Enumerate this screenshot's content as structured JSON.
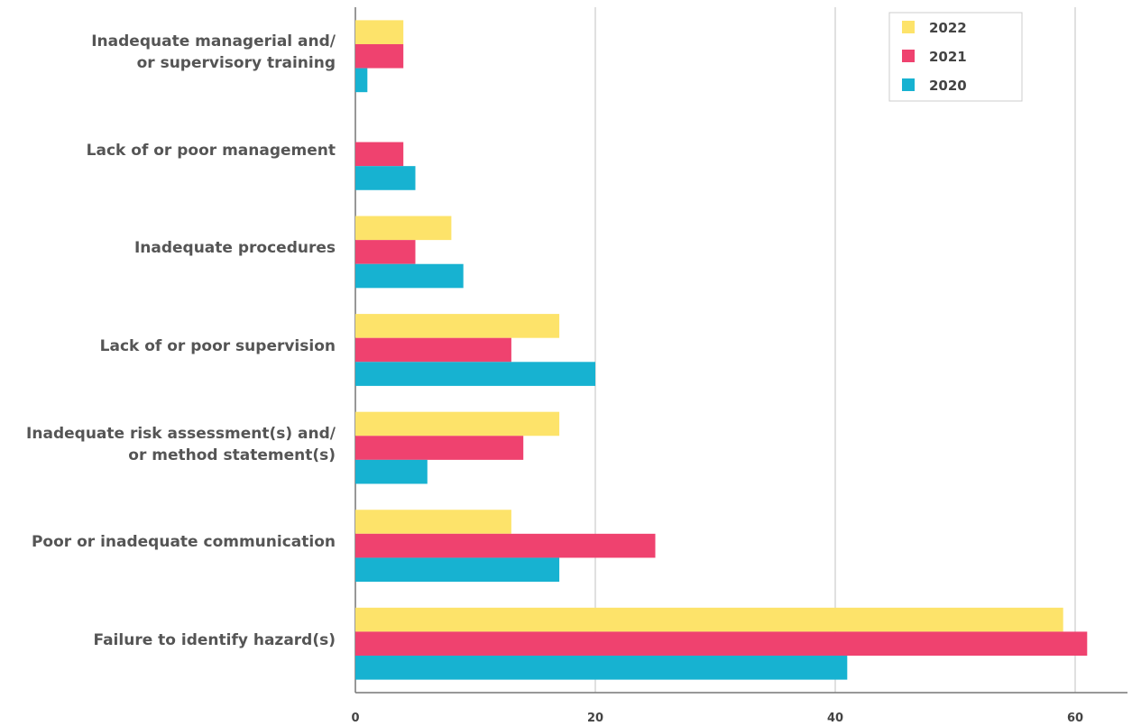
{
  "chart_data": {
    "type": "hbar",
    "categories": [
      "Inadequate managerial and/\nor supervisory training",
      "Lack of or poor management",
      "Inadequate procedures",
      "Lack of or poor supervision",
      "Inadequate risk assessment(s) and/\nor method statement(s)",
      "Poor or inadequate communication",
      "Failure to identify hazard(s)"
    ],
    "series": [
      {
        "name": "2022",
        "color": "#fde36a",
        "values": [
          4,
          null,
          8,
          17,
          17,
          13,
          59
        ]
      },
      {
        "name": "2021",
        "color": "#ef426f",
        "values": [
          4,
          4,
          5,
          13,
          14,
          25,
          61
        ]
      },
      {
        "name": "2020",
        "color": "#17b2d1",
        "values": [
          1,
          5,
          9,
          20,
          6,
          17,
          41
        ]
      }
    ],
    "xlim": [
      0,
      64
    ],
    "xticks": [
      0,
      20,
      40,
      60
    ],
    "grid": true,
    "legend": "top-right"
  }
}
